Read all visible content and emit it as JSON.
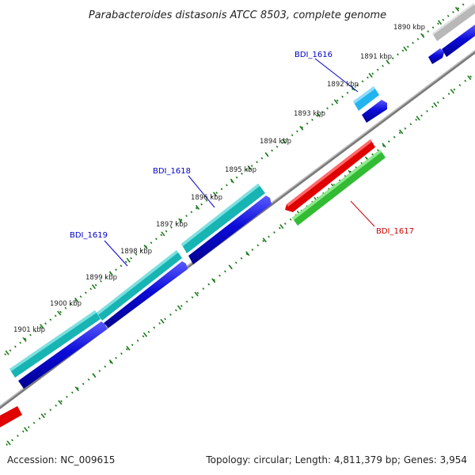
{
  "title": "Parabacteroides distasonis ATCC 8503, complete genome",
  "footer": {
    "accession": "Accession: NC_009615",
    "summary": "Topology: circular; Length: 4,811,379 bp; Genes: 3,954"
  },
  "scale_labels": [
    "1890 kbp",
    "1891 kbp",
    "1892 kbp",
    "1893 kbp",
    "1894 kbp",
    "1895 kbp",
    "1896 kbp",
    "1897 kbp",
    "1898 kbp",
    "1899 kbp",
    "1900 kbp",
    "1901 kbp"
  ],
  "gene_labels": {
    "bdi_1616": "BDI_1616",
    "bdi_1617": "BDI_1617",
    "bdi_1618": "BDI_1618",
    "bdi_1619": "BDI_1619"
  },
  "colors": {
    "backbone": "#8a8a8a",
    "tick": "#1a7a1a",
    "cds_blue": "#0b0bd8",
    "gene_cyan": "#17b4b4",
    "gene_lightblue": "#22b4ee",
    "gene_red": "#e00000",
    "gene_green": "#33bb33",
    "gene_gray": "#b8b8b8",
    "label_blue": "#0000cc",
    "label_red": "#cc0000"
  }
}
